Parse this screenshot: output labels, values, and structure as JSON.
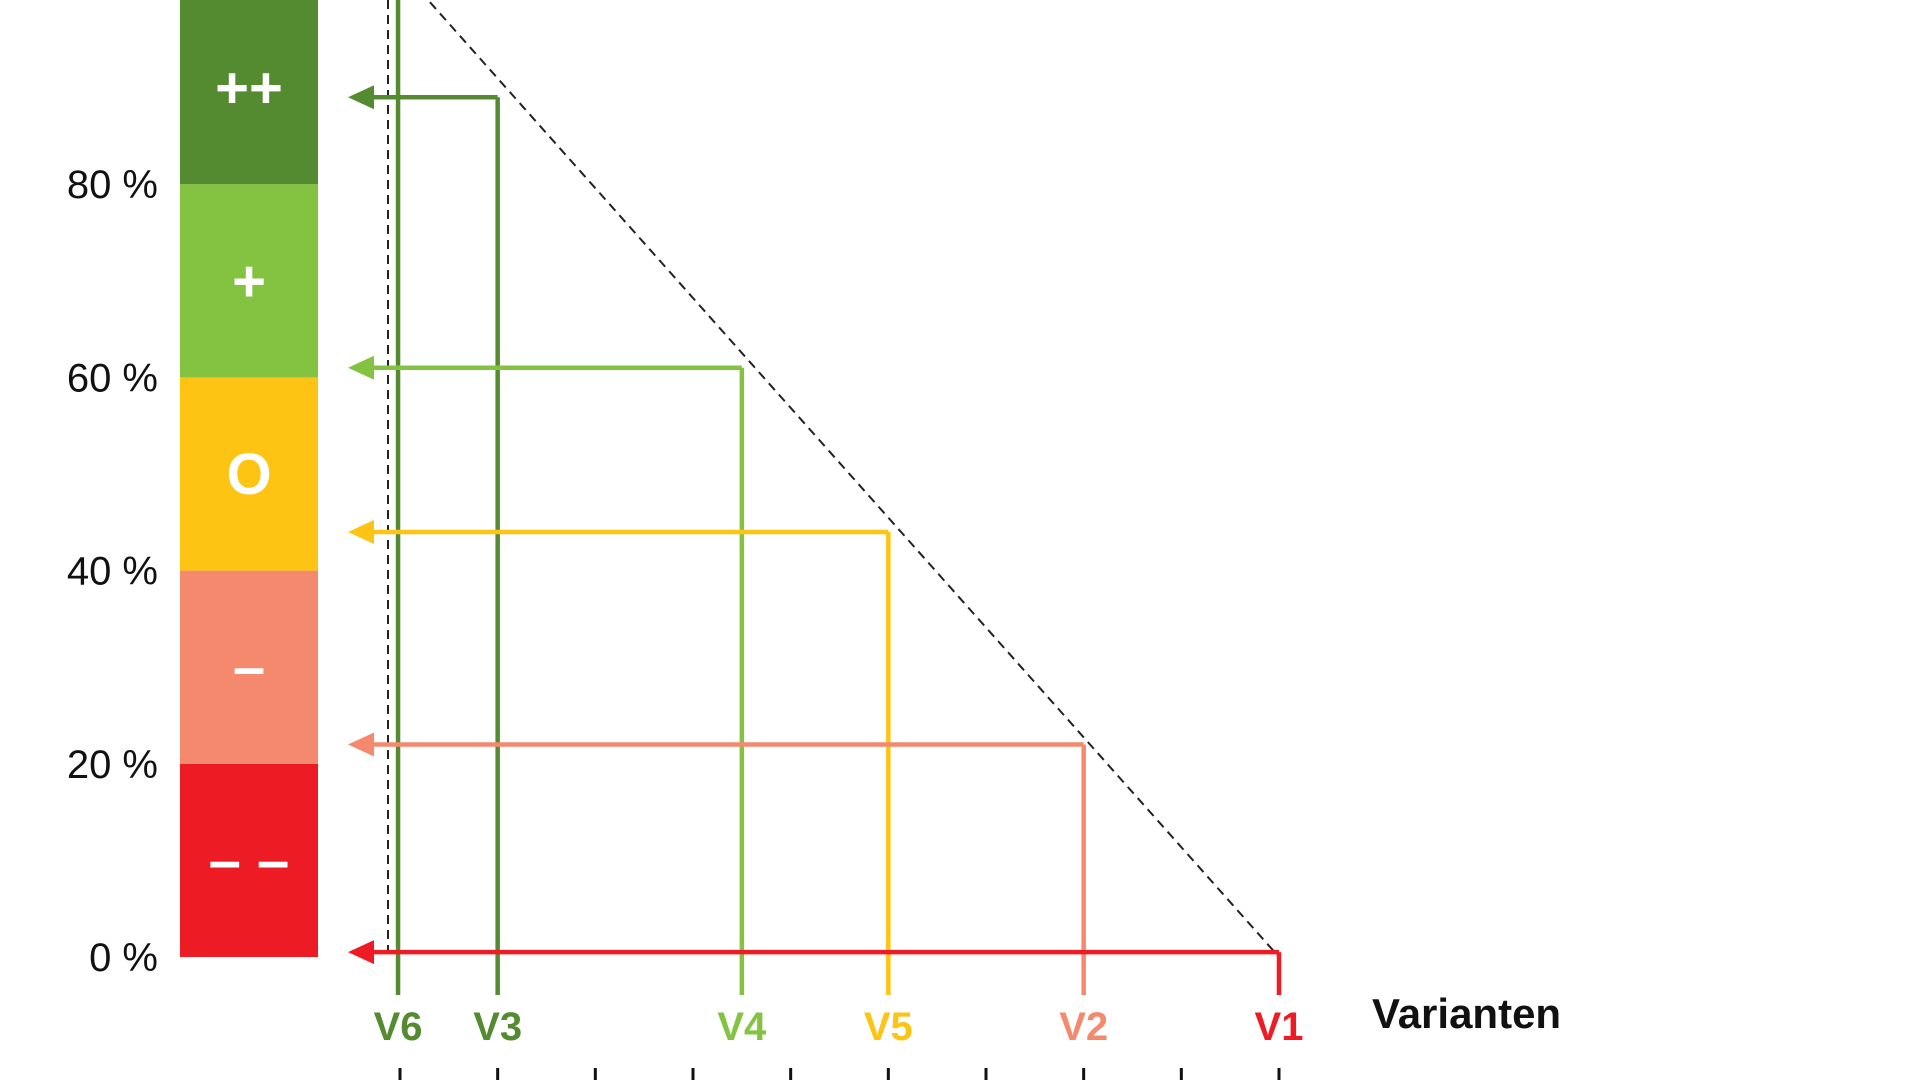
{
  "chart_data": {
    "type": "line",
    "title": "",
    "xlabel": "Varianten",
    "ylabel": "",
    "ylim": [
      0,
      100
    ],
    "y_ticks": [
      "0 %",
      "20 %",
      "40 %",
      "60 %",
      "80 %"
    ],
    "y_tick_values": [
      0,
      20,
      40,
      60,
      80
    ],
    "x_ticks": 10,
    "xlim": [
      0,
      9
    ],
    "bands": [
      {
        "symbol": "– –",
        "from": 0,
        "to": 20,
        "color": "#ED1C24"
      },
      {
        "symbol": "–",
        "from": 20,
        "to": 40,
        "color": "#F4896E"
      },
      {
        "symbol": "O",
        "from": 40,
        "to": 60,
        "color": "#FDC413"
      },
      {
        "symbol": "+",
        "from": 60,
        "to": 80,
        "color": "#84C341"
      },
      {
        "symbol": "++",
        "from": 80,
        "to": 100,
        "color": "#548B31"
      }
    ],
    "diagonal": {
      "x": [
        0,
        9
      ],
      "y": [
        100,
        0
      ],
      "style": "dashed",
      "color": "#222222"
    },
    "series": [
      {
        "label": "V6",
        "x": -0.02,
        "y": 100,
        "color": "#548B31"
      },
      {
        "label": "V3",
        "x": 1,
        "y": 89,
        "color": "#548B31"
      },
      {
        "label": "V4",
        "x": 3.5,
        "y": 61,
        "color": "#84C341"
      },
      {
        "label": "V5",
        "x": 5,
        "y": 44,
        "color": "#FDC413"
      },
      {
        "label": "V2",
        "x": 7,
        "y": 22,
        "color": "#F4896E"
      },
      {
        "label": "V1",
        "x": 9,
        "y": 0.5,
        "color": "#ED1C24"
      }
    ]
  }
}
